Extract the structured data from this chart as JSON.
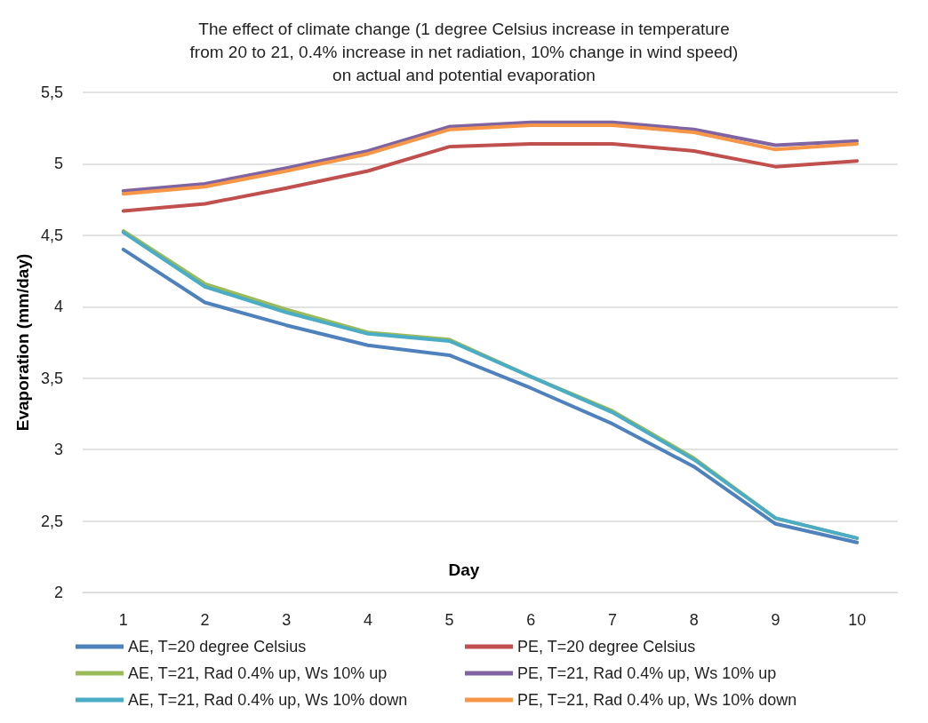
{
  "chart_data": {
    "type": "line",
    "title": "The effect of climate change (1 degree Celsius increase in temperature\nfrom 20 to 21, 0.4% increase in net radiation, 10% change in wind speed)\non actual and potential evaporation",
    "xlabel": "Day",
    "ylabel": "Evaporation (mm/day)",
    "categories": [
      "1",
      "2",
      "3",
      "4",
      "5",
      "6",
      "7",
      "8",
      "9",
      "10"
    ],
    "series": [
      {
        "name": "AE, T=20 degree Celsius",
        "color": "#4f81bd",
        "values": [
          4.4,
          4.03,
          3.87,
          3.73,
          3.66,
          3.43,
          3.18,
          2.88,
          2.48,
          2.35
        ]
      },
      {
        "name": "PE, T=20 degree Celsius",
        "color": "#c0504d",
        "values": [
          4.67,
          4.72,
          4.83,
          4.95,
          5.12,
          5.14,
          5.14,
          5.09,
          4.98,
          5.02
        ]
      },
      {
        "name": "AE, T=21, Rad 0.4% up, Ws 10% up",
        "color": "#9bbb59",
        "values": [
          4.53,
          4.16,
          3.98,
          3.82,
          3.77,
          3.51,
          3.27,
          2.94,
          2.52,
          2.38
        ]
      },
      {
        "name": "PE, T=21, Rad 0.4% up, Ws 10% up",
        "color": "#8064a2",
        "values": [
          4.81,
          4.86,
          4.97,
          5.09,
          5.26,
          5.29,
          5.29,
          5.24,
          5.13,
          5.16
        ]
      },
      {
        "name": "AE, T=21, Rad 0.4% up, Ws 10% down",
        "color": "#4bacc6",
        "values": [
          4.52,
          4.14,
          3.96,
          3.81,
          3.76,
          3.51,
          3.26,
          2.93,
          2.52,
          2.38
        ]
      },
      {
        "name": "PE, T=21, Rad 0.4% up, Ws 10% down",
        "color": "#f79646",
        "values": [
          4.79,
          4.84,
          4.95,
          5.07,
          5.24,
          5.27,
          5.27,
          5.22,
          5.1,
          5.14
        ]
      }
    ],
    "ylim": [
      2,
      5.5
    ],
    "yticks": [
      {
        "value": 2,
        "label": "2"
      },
      {
        "value": 2.5,
        "label": "2,5"
      },
      {
        "value": 3,
        "label": "3"
      },
      {
        "value": 3.5,
        "label": "3,5"
      },
      {
        "value": 4,
        "label": "4"
      },
      {
        "value": 4.5,
        "label": "4,5"
      },
      {
        "value": 5,
        "label": "5"
      },
      {
        "value": 5.5,
        "label": "5,5"
      }
    ],
    "grid": "y",
    "legend": "bottom",
    "marker": "none",
    "line_style": "solid"
  }
}
